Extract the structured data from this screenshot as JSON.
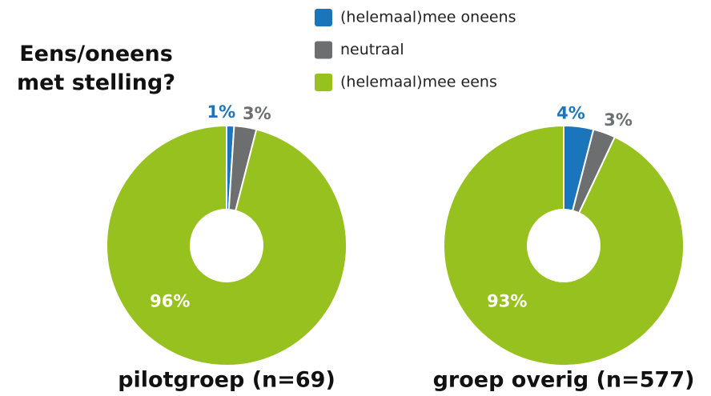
{
  "title": "Eens/oneens met stelling?",
  "chart_data": [
    {
      "type": "pie",
      "title": "pilotgroep (n=69)",
      "categories": [
        "(helemaal)mee oneens",
        "neutraal",
        "(helemaal)mee eens"
      ],
      "values": [
        1,
        3,
        96
      ],
      "value_labels": [
        "1%",
        "3%",
        "96%"
      ],
      "colors": [
        "#1a75bb",
        "#6d6e70",
        "#97c11f"
      ],
      "donut": true,
      "legend": "top"
    },
    {
      "type": "pie",
      "title": "groep overig (n=577)",
      "categories": [
        "(helemaal)mee oneens",
        "neutraal",
        "(helemaal)mee eens"
      ],
      "values": [
        4,
        3,
        93
      ],
      "value_labels": [
        "4%",
        "3%",
        "93%"
      ],
      "colors": [
        "#1a75bb",
        "#6d6e70",
        "#97c11f"
      ],
      "donut": true
    }
  ]
}
